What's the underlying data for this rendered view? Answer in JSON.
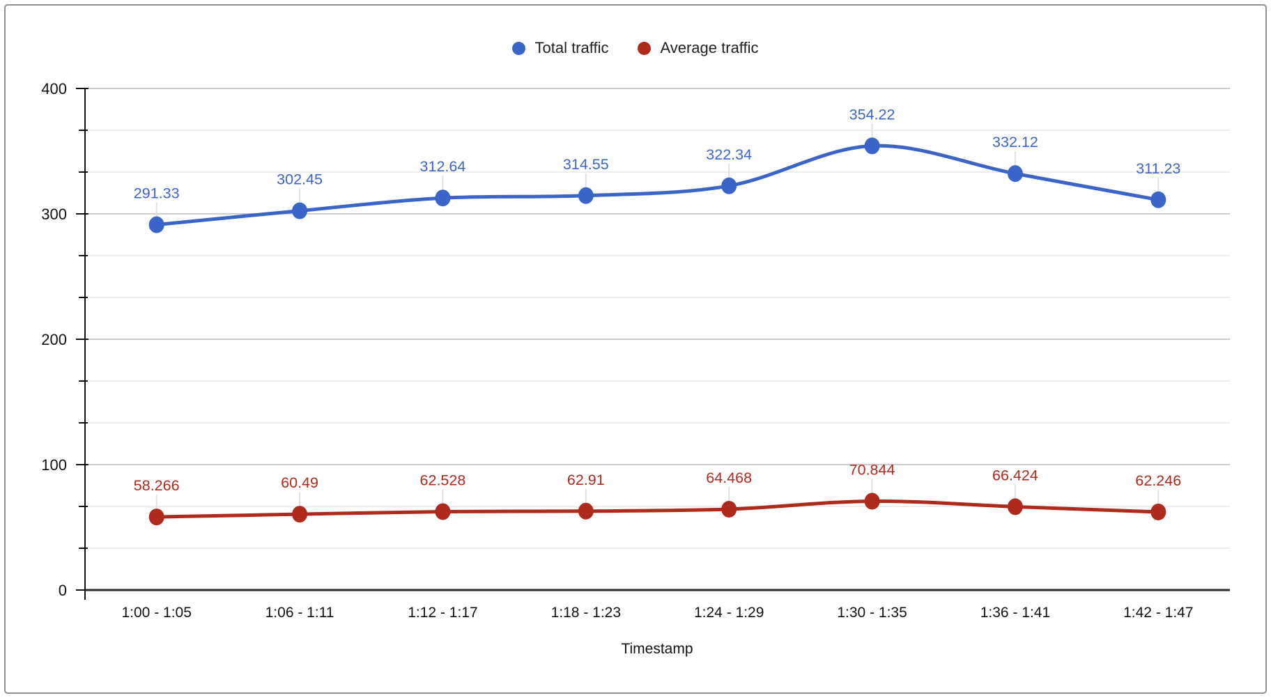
{
  "panel": {
    "border_color": "#8f8f8f",
    "background": "#ffffff"
  },
  "chart_data": {
    "type": "line",
    "title": "",
    "xlabel": "Timestamp",
    "ylabel": "",
    "legend_position": "top",
    "smooth": true,
    "grid": true,
    "categories": [
      "1:00 - 1:05",
      "1:06 - 1:11",
      "1:12 - 1:17",
      "1:18 - 1:23",
      "1:24 - 1:29",
      "1:30 - 1:35",
      "1:36 - 1:41",
      "1:42 - 1:47"
    ],
    "y_axis": {
      "min": 0,
      "max": 400,
      "major_ticks": [
        0,
        100,
        200,
        300,
        400
      ],
      "major_tick_labels": [
        "0",
        "100",
        "200",
        "300",
        "400"
      ],
      "minor_divisions_per_major": 3
    },
    "series": [
      {
        "name": "Total traffic",
        "color": "#3a64c8",
        "values": [
          291.33,
          302.45,
          312.64,
          314.55,
          322.34,
          354.22,
          332.12,
          311.23
        ],
        "point_labels": [
          "291.33",
          "302.45",
          "312.64",
          "314.55",
          "322.34",
          "354.22",
          "332.12",
          "311.23"
        ]
      },
      {
        "name": "Average traffic",
        "color": "#ad2a1d",
        "values": [
          58.266,
          60.49,
          62.528,
          62.91,
          64.468,
          70.844,
          66.424,
          62.246
        ],
        "point_labels": [
          "58.266",
          "60.49",
          "62.528",
          "62.91",
          "64.468",
          "70.844",
          "66.424",
          "62.246"
        ]
      }
    ],
    "style": {
      "major_gridline_color": "#cccccc",
      "minor_gridline_color": "#ededed",
      "axis_line_color": "#2a2a2a",
      "tick_color": "#111111",
      "axis_label_color": "#111111",
      "annotation_stem_color": "#e0e0e0"
    }
  }
}
